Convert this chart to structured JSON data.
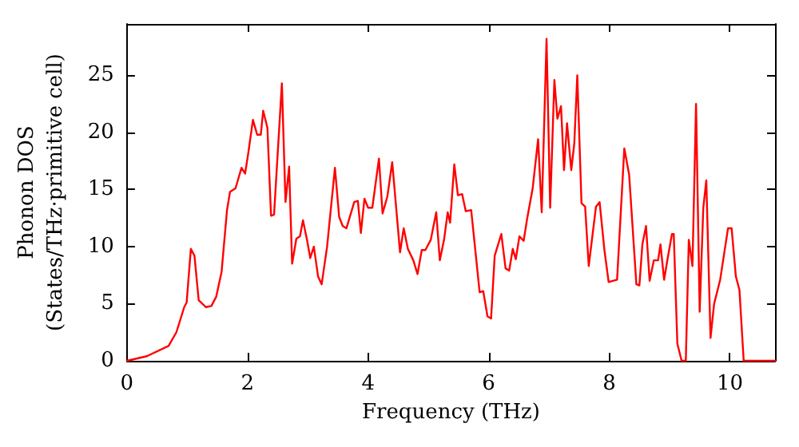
{
  "chart_data": {
    "type": "line",
    "xlabel": "Frequency (THz)",
    "ylabel": "Phonon DOS\n(States/THz·primitive cell)",
    "xlim": [
      0,
      10.75
    ],
    "xticks": [
      0,
      2,
      4,
      6,
      8,
      10
    ],
    "ylim": [
      0,
      29.5
    ],
    "yticks": [
      0,
      5,
      10,
      15,
      20,
      25
    ],
    "marker": "none",
    "line_style": "solid",
    "series": [
      {
        "color": "#ff0000",
        "x": [
          0,
          0.33,
          0.69,
          0.82,
          0.95,
          0.99,
          1.06,
          1.12,
          1.19,
          1.31,
          1.4,
          1.48,
          1.57,
          1.66,
          1.71,
          1.8,
          1.9,
          1.96,
          2.01,
          2.09,
          2.16,
          2.22,
          2.26,
          2.33,
          2.39,
          2.44,
          2.57,
          2.63,
          2.69,
          2.74,
          2.81,
          2.87,
          2.92,
          2.99,
          3.04,
          3.1,
          3.17,
          3.23,
          3.32,
          3.45,
          3.52,
          3.58,
          3.64,
          3.77,
          3.83,
          3.88,
          3.94,
          4.0,
          4.07,
          4.18,
          4.24,
          4.32,
          4.4,
          4.53,
          4.59,
          4.66,
          4.75,
          4.82,
          4.89,
          4.95,
          5.04,
          5.13,
          5.19,
          5.26,
          5.32,
          5.36,
          5.43,
          5.49,
          5.56,
          5.62,
          5.71,
          5.85,
          5.91,
          5.98,
          6.04,
          6.1,
          6.21,
          6.28,
          6.34,
          6.4,
          6.45,
          6.51,
          6.58,
          6.64,
          6.73,
          6.82,
          6.88,
          6.96,
          7.02,
          7.09,
          7.14,
          7.2,
          7.25,
          7.3,
          7.37,
          7.42,
          7.47,
          7.54,
          7.6,
          7.66,
          7.78,
          7.84,
          7.92,
          7.99,
          8.13,
          8.25,
          8.33,
          8.45,
          8.5,
          8.55,
          8.61,
          8.67,
          8.74,
          8.81,
          8.85,
          8.91,
          8.97,
          9.04,
          9.07,
          9.13,
          9.2,
          9.27,
          9.32,
          9.38,
          9.44,
          9.5,
          9.56,
          9.61,
          9.68,
          9.74,
          9.84,
          9.97,
          10.03,
          10.1,
          10.16,
          10.23,
          10.75
        ],
        "values": [
          0,
          0.4,
          1.3,
          2.5,
          4.7,
          5.1,
          9.8,
          9.2,
          5.3,
          4.7,
          4.8,
          5.6,
          7.8,
          13.2,
          14.8,
          15.1,
          16.9,
          16.4,
          18.1,
          21.1,
          19.8,
          19.8,
          21.9,
          20.4,
          12.7,
          12.8,
          24.3,
          13.9,
          17.0,
          8.5,
          10.7,
          10.9,
          12.3,
          10.5,
          9.0,
          10.0,
          7.4,
          6.7,
          10.0,
          16.9,
          12.6,
          11.8,
          11.6,
          13.9,
          14.0,
          11.2,
          14.2,
          13.4,
          13.4,
          17.7,
          12.9,
          14.4,
          17.4,
          9.5,
          11.6,
          9.8,
          8.8,
          7.6,
          9.7,
          9.7,
          10.6,
          13.0,
          8.8,
          10.6,
          13.0,
          12.1,
          17.2,
          14.5,
          14.6,
          13.1,
          13.2,
          6.0,
          6.1,
          3.9,
          3.7,
          9.2,
          11.1,
          8.1,
          7.9,
          9.8,
          8.9,
          10.9,
          10.5,
          12.5,
          15.1,
          19.4,
          13.0,
          28.2,
          13.4,
          24.6,
          21.2,
          22.3,
          16.7,
          20.8,
          16.7,
          19.0,
          25.0,
          13.8,
          13.5,
          8.3,
          13.5,
          13.9,
          9.7,
          6.9,
          7.1,
          18.6,
          16.3,
          6.7,
          6.6,
          10.2,
          11.8,
          7.0,
          8.8,
          8.8,
          10.2,
          7.1,
          9.0,
          11.1,
          11.1,
          1.5,
          0,
          0,
          10.6,
          8.3,
          22.5,
          4.3,
          13.4,
          15.8,
          2.0,
          5.0,
          7.1,
          11.6,
          11.6,
          7.4,
          6.2,
          0,
          0
        ]
      }
    ]
  }
}
